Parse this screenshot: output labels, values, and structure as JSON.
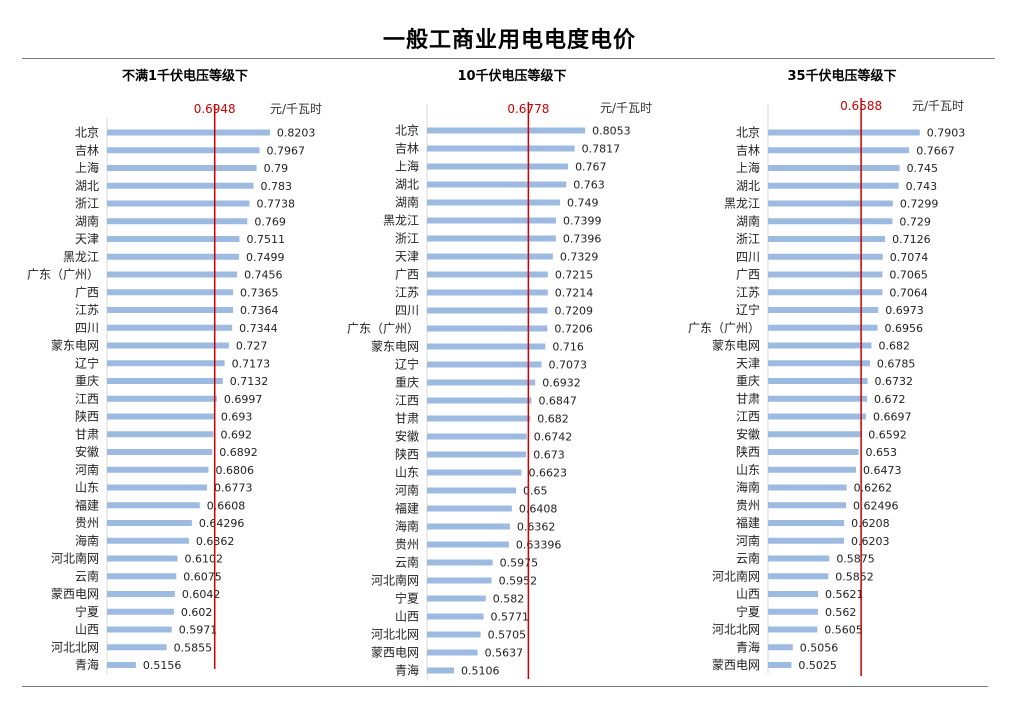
{
  "title": "一般工商业用电电度电价",
  "chart_data": [
    {
      "type": "bar",
      "orientation": "horizontal",
      "title": "不满1千伏电压等级下",
      "unit": "元/千瓦时",
      "reference_line": {
        "value": 0.6948,
        "label": "0.6948",
        "color": "#cc0000"
      },
      "bar_color": "#9dbbe0",
      "xlim": [
        0.45,
        0.83
      ],
      "categories": [
        "北京",
        "吉林",
        "上海",
        "湖北",
        "浙江",
        "湖南",
        "天津",
        "黑龙江",
        "广东（广州）",
        "广西",
        "江苏",
        "四川",
        "蒙东电网",
        "辽宁",
        "重庆",
        "江西",
        "陕西",
        "甘肃",
        "安徽",
        "河南",
        "山东",
        "福建",
        "贵州",
        "海南",
        "河北南网",
        "云南",
        "蒙西电网",
        "宁夏",
        "山西",
        "河北北网",
        "青海"
      ],
      "values": [
        0.8203,
        0.7967,
        0.79,
        0.783,
        0.7738,
        0.769,
        0.7511,
        0.7499,
        0.7456,
        0.7365,
        0.7364,
        0.7344,
        0.727,
        0.7173,
        0.7132,
        0.6997,
        0.693,
        0.692,
        0.6892,
        0.6806,
        0.6773,
        0.6608,
        0.64296,
        0.6362,
        0.6102,
        0.6075,
        0.6042,
        0.602,
        0.5971,
        0.5855,
        0.5156
      ],
      "labels": [
        "0.8203",
        "0.7967",
        "0.79",
        "0.783",
        "0.7738",
        "0.769",
        "0.7511",
        "0.7499",
        "0.7456",
        "0.7365",
        "0.7364",
        "0.7344",
        "0.727",
        "0.7173",
        "0.7132",
        "0.6997",
        "0.693",
        "0.692",
        "0.6892",
        "0.6806",
        "0.6773",
        "0.6608",
        "0.64296",
        "0.6362",
        "0.6102",
        "0.6075",
        "0.6042",
        "0.602",
        "0.5971",
        "0.5855",
        "0.5156"
      ]
    },
    {
      "type": "bar",
      "orientation": "horizontal",
      "title": "10千伏电压等级下",
      "unit": "元/千瓦时",
      "reference_line": {
        "value": 0.6778,
        "label": "0.6778",
        "color": "#cc0000"
      },
      "bar_color": "#9dbbe0",
      "xlim": [
        0.45,
        0.83
      ],
      "categories": [
        "北京",
        "吉林",
        "上海",
        "湖北",
        "湖南",
        "黑龙江",
        "浙江",
        "天津",
        "广西",
        "江苏",
        "四川",
        "广东（广州）",
        "蒙东电网",
        "辽宁",
        "重庆",
        "江西",
        "甘肃",
        "安徽",
        "陕西",
        "山东",
        "河南",
        "福建",
        "海南",
        "贵州",
        "云南",
        "河北南网",
        "宁夏",
        "山西",
        "河北北网",
        "蒙西电网",
        "青海"
      ],
      "values": [
        0.8053,
        0.7817,
        0.767,
        0.763,
        0.749,
        0.7399,
        0.7396,
        0.7329,
        0.7215,
        0.7214,
        0.7209,
        0.7206,
        0.716,
        0.7073,
        0.6932,
        0.6847,
        0.682,
        0.6742,
        0.673,
        0.6623,
        0.65,
        0.6408,
        0.6362,
        0.63396,
        0.5975,
        0.5952,
        0.582,
        0.5771,
        0.5705,
        0.5637,
        0.5106
      ],
      "labels": [
        "0.8053",
        "0.7817",
        "0.767",
        "0.763",
        "0.749",
        "0.7399",
        "0.7396",
        "0.7329",
        "0.7215",
        "0.7214",
        "0.7209",
        "0.7206",
        "0.716",
        "0.7073",
        "0.6932",
        "0.6847",
        "0.682",
        "0.6742",
        "0.673",
        "0.6623",
        "0.65",
        "0.6408",
        "0.6362",
        "0.63396",
        "0.5975",
        "0.5952",
        "0.582",
        "0.5771",
        "0.5705",
        "0.5637",
        "0.5106"
      ]
    },
    {
      "type": "bar",
      "orientation": "horizontal",
      "title": "35千伏电压等级下",
      "unit": "元/千瓦时",
      "reference_line": {
        "value": 0.6588,
        "label": "0.6588",
        "color": "#cc0000"
      },
      "bar_color": "#9dbbe0",
      "xlim": [
        0.45,
        0.83
      ],
      "categories": [
        "北京",
        "吉林",
        "上海",
        "湖北",
        "黑龙江",
        "湖南",
        "浙江",
        "四川",
        "广西",
        "江苏",
        "辽宁",
        "广东（广州）",
        "蒙东电网",
        "天津",
        "重庆",
        "甘肃",
        "江西",
        "安徽",
        "陕西",
        "山东",
        "海南",
        "贵州",
        "福建",
        "河南",
        "云南",
        "河北南网",
        "山西",
        "宁夏",
        "河北北网",
        "青海",
        "蒙西电网"
      ],
      "values": [
        0.7903,
        0.7667,
        0.745,
        0.743,
        0.7299,
        0.729,
        0.7126,
        0.7074,
        0.7065,
        0.7064,
        0.6973,
        0.6956,
        0.682,
        0.6785,
        0.6732,
        0.672,
        0.6697,
        0.6592,
        0.653,
        0.6473,
        0.6262,
        0.62496,
        0.6208,
        0.6203,
        0.5875,
        0.5852,
        0.5621,
        0.562,
        0.5605,
        0.5056,
        0.5025
      ],
      "labels": [
        "0.7903",
        "0.7667",
        "0.745",
        "0.743",
        "0.7299",
        "0.729",
        "0.7126",
        "0.7074",
        "0.7065",
        "0.7064",
        "0.6973",
        "0.6956",
        "0.682",
        "0.6785",
        "0.6732",
        "0.672",
        "0.6697",
        "0.6592",
        "0.653",
        "0.6473",
        "0.6262",
        "0.62496",
        "0.6208",
        "0.6203",
        "0.5875",
        "0.5852",
        "0.5621",
        "0.562",
        "0.5605",
        "0.5056",
        "0.5025"
      ]
    }
  ]
}
